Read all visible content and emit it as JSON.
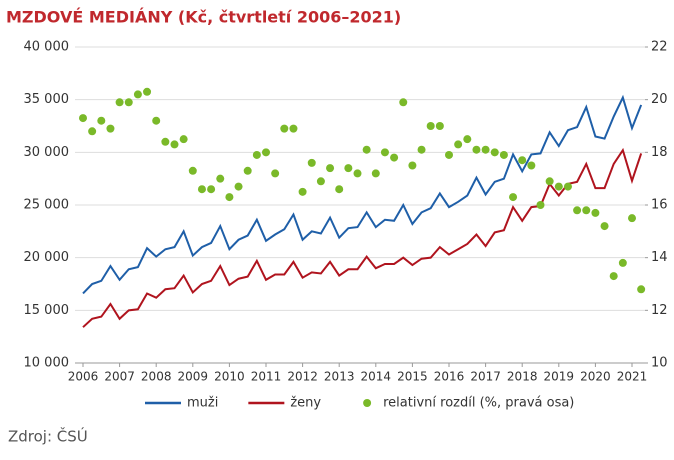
{
  "chart_data": {
    "type": "line",
    "title": "MZDOVÉ MEDIÁNY (Kč, čtvrtletí 2006–2021)",
    "source": "Zdroj: ČSÚ",
    "categories": [
      "2006",
      null,
      null,
      null,
      "2007",
      null,
      null,
      null,
      "2008",
      null,
      null,
      null,
      "2009",
      null,
      null,
      null,
      "2010",
      null,
      null,
      null,
      "2011",
      null,
      null,
      null,
      "2012",
      null,
      null,
      null,
      "2013",
      null,
      null,
      null,
      "2014",
      null,
      null,
      null,
      "2015",
      null,
      null,
      null,
      "2016",
      null,
      null,
      null,
      "2017",
      null,
      null,
      null,
      "2018",
      null,
      null,
      null,
      "2019",
      null,
      null,
      null,
      "2020",
      null,
      null,
      null,
      "2021",
      null
    ],
    "series": [
      {
        "name": "muži",
        "color": "#1f5fa8",
        "values": [
          16600,
          17500,
          17800,
          19200,
          17900,
          18900,
          19100,
          20900,
          20100,
          20800,
          21000,
          22500,
          20200,
          21000,
          21400,
          23000,
          20800,
          21700,
          22100,
          23600,
          21600,
          22200,
          22700,
          24100,
          21700,
          22500,
          22300,
          23800,
          21900,
          22800,
          22900,
          24300,
          22900,
          23600,
          23500,
          25000,
          23200,
          24300,
          24700,
          26100,
          24800,
          25300,
          25900,
          27600,
          26000,
          27200,
          27500,
          29800,
          28200,
          29800,
          29900,
          31900,
          30600,
          32100,
          32400,
          34300,
          31500,
          31300,
          33400,
          35200,
          32300,
          34500
        ]
      },
      {
        "name": "ženy",
        "color": "#b0141e",
        "values": [
          13400,
          14200,
          14400,
          15600,
          14200,
          15000,
          15100,
          16600,
          16200,
          17000,
          17100,
          18300,
          16700,
          17500,
          17800,
          19200,
          17400,
          18000,
          18200,
          19700,
          17900,
          18400,
          18400,
          19600,
          18100,
          18600,
          18500,
          19600,
          18300,
          18900,
          18900,
          20100,
          19000,
          19400,
          19400,
          20000,
          19300,
          19900,
          20000,
          21000,
          20300,
          20800,
          21300,
          22200,
          21100,
          22400,
          22600,
          24800,
          23500,
          24800,
          24900,
          27000,
          25900,
          27000,
          27200,
          28900,
          26600,
          26600,
          28900,
          30200,
          27300,
          29900
        ]
      },
      {
        "name": "relativní rozdíl (%, pravá osa)",
        "color": "#7ab929",
        "axis": "y2",
        "marker": "dot",
        "values": [
          19.3,
          18.8,
          19.2,
          18.9,
          19.9,
          19.9,
          20.2,
          20.3,
          19.2,
          18.4,
          18.3,
          18.5,
          17.3,
          16.6,
          16.6,
          17.0,
          16.3,
          16.7,
          17.3,
          17.9,
          18.0,
          17.2,
          18.9,
          18.9,
          16.5,
          17.6,
          16.9,
          17.4,
          16.6,
          17.4,
          17.2,
          18.1,
          17.2,
          18.0,
          17.8,
          19.9,
          17.5,
          18.1,
          19.0,
          19.0,
          17.9,
          18.3,
          18.5,
          18.1,
          18.1,
          18.0,
          17.9,
          16.3,
          17.7,
          17.5,
          16.0,
          16.9,
          16.7,
          16.7,
          15.8,
          15.8,
          15.7,
          15.2,
          13.3,
          13.8,
          15.5,
          12.8
        ]
      }
    ],
    "ylim": [
      10000,
      40000
    ],
    "yticks": [
      {
        "value": 10000,
        "label": "10 000"
      },
      {
        "value": 15000,
        "label": "15 000"
      },
      {
        "value": 20000,
        "label": "20 000"
      },
      {
        "value": 25000,
        "label": "25 000"
      },
      {
        "value": 30000,
        "label": "30 000"
      },
      {
        "value": 35000,
        "label": "35 000"
      },
      {
        "value": 40000,
        "label": "40 000"
      }
    ],
    "y2lim": [
      10,
      22
    ],
    "y2ticks": [
      10,
      12,
      14,
      16,
      18,
      20,
      22
    ],
    "grid": true
  }
}
